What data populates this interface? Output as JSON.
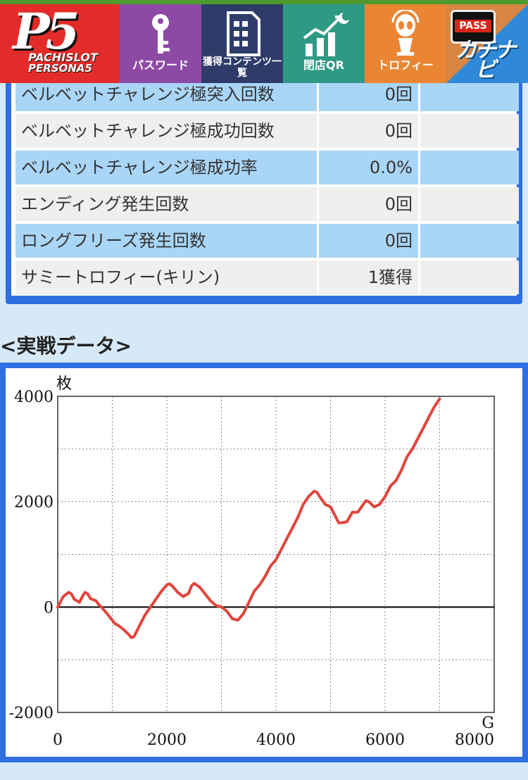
{
  "header": {
    "logo": {
      "line1": "PACHISLOT",
      "line2": "PERSONA5",
      "mark": "P5"
    },
    "nav": [
      {
        "label": "パスワード",
        "icon": "key-icon"
      },
      {
        "label": "獲得コンテンツ一覧",
        "icon": "document-icon"
      },
      {
        "label": "閉店QR",
        "icon": "growth-chart-moon-icon"
      },
      {
        "label": "トロフィー",
        "icon": "trophy-character-icon"
      },
      {
        "label": "カチナビ",
        "badge": "PASS",
        "icon": "pass-badge-icon"
      }
    ]
  },
  "stats": {
    "rows": [
      {
        "name": "ベルベットチャレンジ極突入回数",
        "value": "0回"
      },
      {
        "name": "ベルベットチャレンジ極成功回数",
        "value": "0回"
      },
      {
        "name": "ベルベットチャレンジ極成功率",
        "value": "0.0%"
      },
      {
        "name": "エンディング発生回数",
        "value": "0回"
      },
      {
        "name": "ロングフリーズ発生回数",
        "value": "0回"
      },
      {
        "name": "サミートロフィー(キリン)",
        "value": "1獲得"
      }
    ]
  },
  "section_title": "<実戦データ>",
  "chart_data": {
    "type": "line",
    "ylabel": "枚",
    "xlabel": "G",
    "xlim": [
      0,
      8000
    ],
    "ylim": [
      -2000,
      4000
    ],
    "x_ticks": [
      0,
      2000,
      4000,
      6000,
      8000
    ],
    "y_ticks": [
      4000,
      2000,
      0,
      -2000
    ],
    "grid": true,
    "colors": {
      "line": "#e0453c",
      "zero_line": "#000000"
    },
    "series": [
      {
        "x": [
          0,
          100,
          200,
          250,
          300,
          400,
          450,
          500,
          550,
          600,
          700,
          750,
          800,
          900,
          1000,
          1050,
          1100,
          1200,
          1300,
          1350,
          1400,
          1500,
          1600,
          1700,
          1800,
          1900,
          2000,
          2050,
          2100,
          2200,
          2300,
          2400,
          2450,
          2500,
          2600,
          2700,
          2800,
          2900,
          3000,
          3100,
          3200,
          3300,
          3400,
          3500,
          3600,
          3700,
          3800,
          3900,
          4000,
          4100,
          4200,
          4300,
          4400,
          4500,
          4600,
          4700,
          4750,
          4800,
          4900,
          5000,
          5100,
          5150,
          5200,
          5300,
          5400,
          5500,
          5600,
          5650,
          5700,
          5800,
          5900,
          6000,
          6100,
          6200,
          6300,
          6400,
          6500,
          6600,
          6700,
          6800,
          6900,
          7000
        ],
        "y": [
          0,
          200,
          280,
          250,
          150,
          90,
          200,
          280,
          250,
          160,
          120,
          50,
          0,
          -120,
          -250,
          -320,
          -340,
          -420,
          -520,
          -580,
          -560,
          -350,
          -150,
          0,
          150,
          300,
          420,
          440,
          400,
          280,
          200,
          260,
          400,
          450,
          380,
          250,
          120,
          30,
          0,
          -80,
          -220,
          -250,
          -130,
          80,
          300,
          420,
          580,
          780,
          900,
          1100,
          1300,
          1500,
          1700,
          1950,
          2100,
          2200,
          2180,
          2100,
          1950,
          1900,
          1700,
          1600,
          1600,
          1620,
          1800,
          1800,
          1950,
          2020,
          2000,
          1900,
          1950,
          2100,
          2300,
          2400,
          2600,
          2850,
          3000,
          3200,
          3400,
          3600,
          3800,
          3950
        ]
      }
    ]
  }
}
